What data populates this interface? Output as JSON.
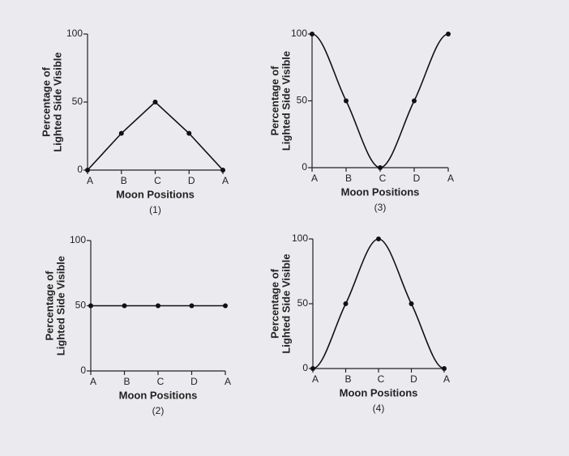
{
  "chart_data": [
    {
      "type": "line",
      "smooth": false,
      "caption": "(1)",
      "xlabel": "Moon Positions",
      "ylabel": [
        "Percentage of",
        "Lighted Side Visible"
      ],
      "categories": [
        "A",
        "B",
        "C",
        "D",
        "A"
      ],
      "values": [
        0,
        27,
        50,
        27,
        0
      ],
      "ylim": [
        0,
        100
      ],
      "yticks": [
        0,
        50,
        100
      ],
      "color": "#111111"
    },
    {
      "type": "line",
      "smooth": false,
      "caption": "(2)",
      "xlabel": "Moon Positions",
      "ylabel": [
        "Percentage of",
        "Lighted Side Visible"
      ],
      "categories": [
        "A",
        "B",
        "C",
        "D",
        "A"
      ],
      "values": [
        50,
        50,
        50,
        50,
        50
      ],
      "ylim": [
        0,
        100
      ],
      "yticks": [
        0,
        50,
        100
      ],
      "color": "#111111"
    },
    {
      "type": "line",
      "smooth": true,
      "caption": "(3)",
      "xlabel": "Moon Positions",
      "ylabel": [
        "Percentage of",
        "Lighted Side Visible"
      ],
      "categories": [
        "A",
        "B",
        "C",
        "D",
        "A"
      ],
      "values": [
        100,
        50,
        0,
        50,
        100
      ],
      "ylim": [
        0,
        100
      ],
      "yticks": [
        0,
        50,
        100
      ],
      "color": "#111111"
    },
    {
      "type": "line",
      "smooth": true,
      "caption": "(4)",
      "xlabel": "Moon Positions",
      "ylabel": [
        "Percentage of",
        "Lighted Side Visible"
      ],
      "categories": [
        "A",
        "B",
        "C",
        "D",
        "A"
      ],
      "values": [
        0,
        50,
        100,
        50,
        0
      ],
      "ylim": [
        0,
        100
      ],
      "yticks": [
        0,
        50,
        100
      ],
      "color": "#111111"
    }
  ]
}
